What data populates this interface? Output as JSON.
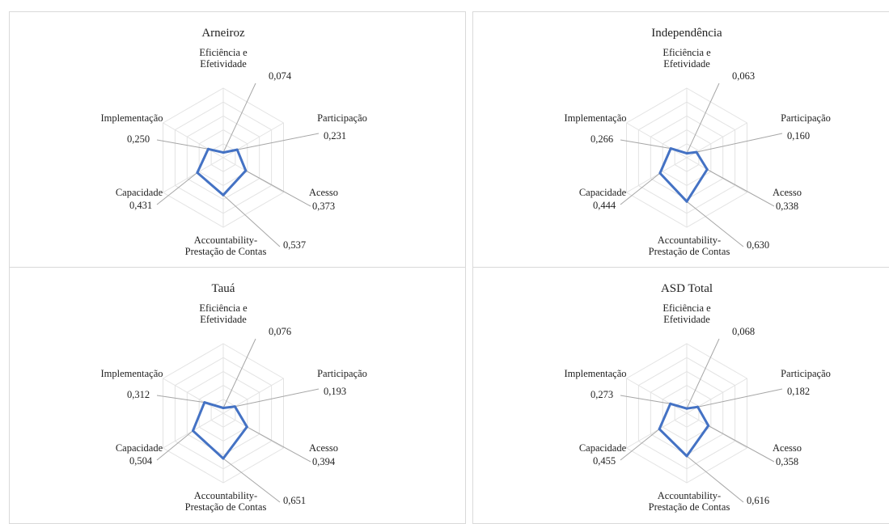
{
  "chart_data": [
    {
      "type": "radar",
      "title": "Arneiroz",
      "axes": [
        "Eficiência e Efetividade",
        "Participação",
        "Acesso",
        "Accountability-Prestação de Contas",
        "Capacidade",
        "Implementação"
      ],
      "values": [
        0.074,
        0.231,
        0.373,
        0.537,
        0.431,
        0.25
      ],
      "value_labels": [
        "0,074",
        "0,231",
        "0,373",
        "0,537",
        "0,431",
        "0,250"
      ],
      "rlim": [
        0,
        1
      ],
      "grid": true,
      "line_color": "#4472C4"
    },
    {
      "type": "radar",
      "title": "Independência",
      "axes": [
        "Eficiência e Efetividade",
        "Participação",
        "Acesso",
        "Accountability-Prestação de Contas",
        "Capacidade",
        "Implementação"
      ],
      "values": [
        0.063,
        0.16,
        0.338,
        0.63,
        0.444,
        0.266
      ],
      "value_labels": [
        "0,063",
        "0,160",
        "0,338",
        "0,630",
        "0,444",
        "0,266"
      ],
      "rlim": [
        0,
        1
      ],
      "grid": true,
      "line_color": "#4472C4"
    },
    {
      "type": "radar",
      "title": "Tauá",
      "axes": [
        "Eficiência e Efetividade",
        "Participação",
        "Acesso",
        "Accountability-Prestação de Contas",
        "Capacidade",
        "Implementação"
      ],
      "values": [
        0.076,
        0.193,
        0.394,
        0.651,
        0.504,
        0.312
      ],
      "value_labels": [
        "0,076",
        "0,193",
        "0,394",
        "0,651",
        "0,504",
        "0,312"
      ],
      "rlim": [
        0,
        1
      ],
      "grid": true,
      "line_color": "#4472C4"
    },
    {
      "type": "radar",
      "title": "ASD Total",
      "axes": [
        "Eficiência e Efetividade",
        "Participação",
        "Acesso",
        "Accountability-Prestação de Contas",
        "Capacidade",
        "Implementação"
      ],
      "values": [
        0.068,
        0.182,
        0.358,
        0.616,
        0.455,
        0.273
      ],
      "value_labels": [
        "0,068",
        "0,182",
        "0,358",
        "0,616",
        "0,455",
        "0,273"
      ],
      "rlim": [
        0,
        1
      ],
      "grid": true,
      "line_color": "#4472C4"
    }
  ]
}
